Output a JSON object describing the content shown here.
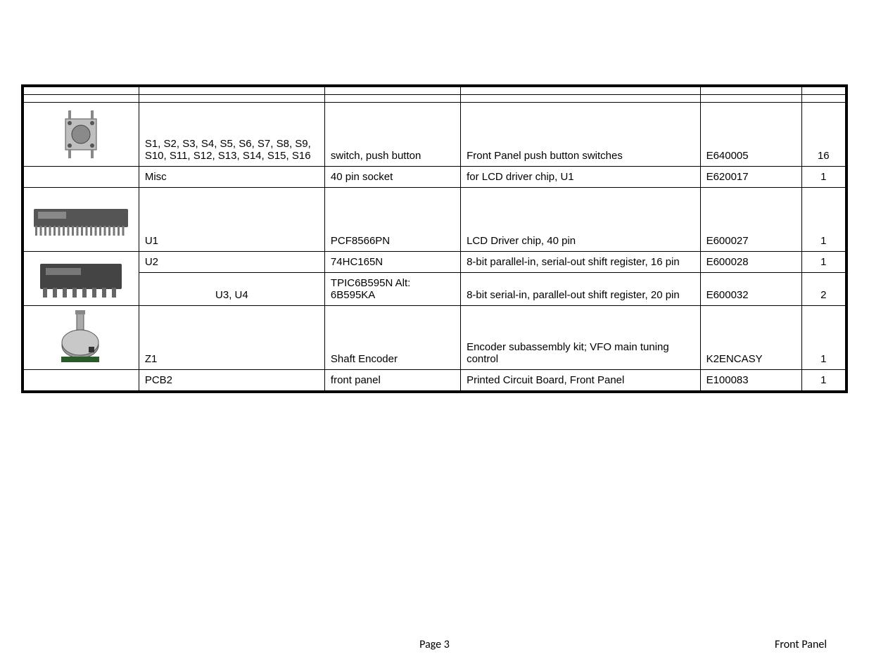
{
  "table": {
    "rows": [
      {
        "icon": "pushbutton",
        "ref": "S1, S2, S3, S4, S5, S6, S7, S8, S9, S10, S11, S12, S13, S14, S15, S16",
        "value": "switch, push button",
        "desc": "Front Panel push button switches",
        "part": "E640005",
        "qty": "16",
        "height": "tall"
      },
      {
        "icon": "",
        "ref": "Misc",
        "value": "40 pin socket",
        "desc": "for LCD driver chip, U1",
        "part": "E620017",
        "qty": "1",
        "height": ""
      },
      {
        "icon": "chip40",
        "ref": "U1",
        "value": "PCF8566PN",
        "desc": "LCD Driver chip, 40 pin",
        "part": "E600027",
        "qty": "1",
        "height": "tall"
      },
      {
        "icon": "chip16",
        "ref": "U2",
        "value": "74HC165N",
        "desc": "8-bit parallel-in, serial-out shift register, 16 pin",
        "part": "E600028",
        "qty": "1",
        "height": "",
        "rowspan_img": 2
      },
      {
        "icon": "",
        "ref": "U3, U4",
        "value": "TPIC6B595N Alt: 6B595KA",
        "desc": "8-bit serial-in, parallel-out shift register, 20 pin",
        "part": "E600032",
        "qty": "2",
        "height": "",
        "skip_img": true
      },
      {
        "icon": "encoder",
        "ref": "Z1",
        "value": "Shaft Encoder",
        "desc": "Encoder subassembly kit; VFO main tuning control",
        "part": "K2ENCASY",
        "qty": "1",
        "height": "tall"
      },
      {
        "icon": "",
        "ref": "PCB2",
        "value": "front panel",
        "desc": "Printed Circuit Board, Front Panel",
        "part": "E100083",
        "qty": "1",
        "height": ""
      }
    ]
  },
  "footer": {
    "page": "Page 3",
    "title": "Front Panel"
  },
  "colors": {
    "border": "#000000",
    "text": "#000000",
    "bg": "#ffffff"
  }
}
